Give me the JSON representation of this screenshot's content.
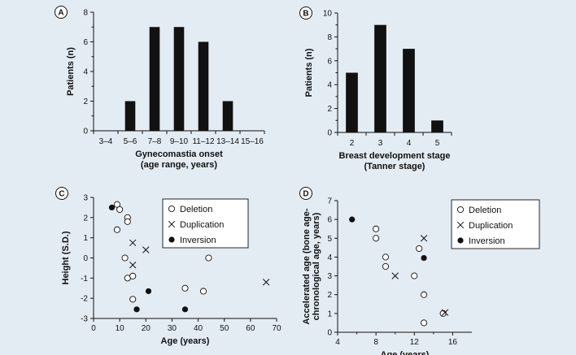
{
  "chart_data": [
    {
      "panel": "A",
      "type": "bar",
      "xlabel": [
        "Gynecomastia onset",
        "(age range, years)"
      ],
      "ylabel": "Patients (n)",
      "categories": [
        "3–4",
        "5–6",
        "7–8",
        "9–10",
        "11–12",
        "13–14",
        "15–16"
      ],
      "values": [
        0,
        2,
        7,
        7,
        6,
        2,
        0
      ],
      "ylim": [
        0,
        8
      ],
      "yticks": [
        0,
        2,
        4,
        6,
        8
      ]
    },
    {
      "panel": "B",
      "type": "bar",
      "xlabel": [
        "Breast development stage",
        "(Tanner stage)"
      ],
      "ylabel": "Patients (n)",
      "categories": [
        "2",
        "3",
        "4",
        "5"
      ],
      "values": [
        5,
        9,
        7,
        1
      ],
      "ylim": [
        0,
        10
      ],
      "yticks": [
        0,
        2,
        4,
        6,
        8,
        10
      ]
    },
    {
      "panel": "C",
      "type": "scatter",
      "xlabel": "Age (years)",
      "ylabel": "Height (S.D.)",
      "xlim": [
        0,
        70
      ],
      "ylim": [
        -3,
        3
      ],
      "xticks": [
        0,
        10,
        20,
        30,
        40,
        50,
        60,
        70
      ],
      "yticks": [
        -3,
        -2,
        -1,
        0,
        1,
        2,
        3
      ],
      "series": [
        {
          "name": "Deletion",
          "marker": "circle-open",
          "points": [
            [
              9,
              2.65
            ],
            [
              10,
              2.4
            ],
            [
              13,
              2.0
            ],
            [
              13,
              1.8
            ],
            [
              9,
              1.4
            ],
            [
              12,
              0.0
            ],
            [
              13,
              -1.0
            ],
            [
              15,
              -0.9
            ],
            [
              15,
              -2.05
            ],
            [
              35,
              -1.5
            ],
            [
              42,
              -1.65
            ],
            [
              44,
              0.0
            ]
          ]
        },
        {
          "name": "Duplication",
          "marker": "cross",
          "points": [
            [
              15,
              0.75
            ],
            [
              15,
              -0.35
            ],
            [
              20,
              0.4
            ],
            [
              66,
              -1.2
            ]
          ]
        },
        {
          "name": "Inversion",
          "marker": "circle-filled",
          "points": [
            [
              7,
              2.5
            ],
            [
              16.5,
              -2.55
            ],
            [
              21,
              -1.65
            ],
            [
              35,
              -2.55
            ]
          ]
        }
      ]
    },
    {
      "panel": "D",
      "type": "scatter",
      "xlabel": "Age (years)",
      "ylabel": [
        "Accelerated age (bone age-",
        "chronological age, years)"
      ],
      "xlim": [
        4,
        18
      ],
      "ylim": [
        0,
        7
      ],
      "xticks": [
        4,
        8,
        12,
        16
      ],
      "yticks": [
        0,
        1,
        2,
        3,
        4,
        5,
        6,
        7
      ],
      "series": [
        {
          "name": "Deletion",
          "marker": "circle-open",
          "points": [
            [
              8,
              5.5
            ],
            [
              8,
              5.0
            ],
            [
              9,
              4.0
            ],
            [
              9,
              3.5
            ],
            [
              12,
              3.0
            ],
            [
              12.5,
              4.45
            ],
            [
              13,
              2.0
            ],
            [
              13,
              0.5
            ],
            [
              15,
              1.0
            ]
          ]
        },
        {
          "name": "Duplication",
          "marker": "cross",
          "points": [
            [
              10,
              3.0
            ],
            [
              13,
              5.0
            ],
            [
              15.2,
              1.05
            ]
          ]
        },
        {
          "name": "Inversion",
          "marker": "circle-filled",
          "points": [
            [
              5.5,
              6.0
            ],
            [
              13,
              3.95
            ]
          ]
        }
      ]
    }
  ]
}
